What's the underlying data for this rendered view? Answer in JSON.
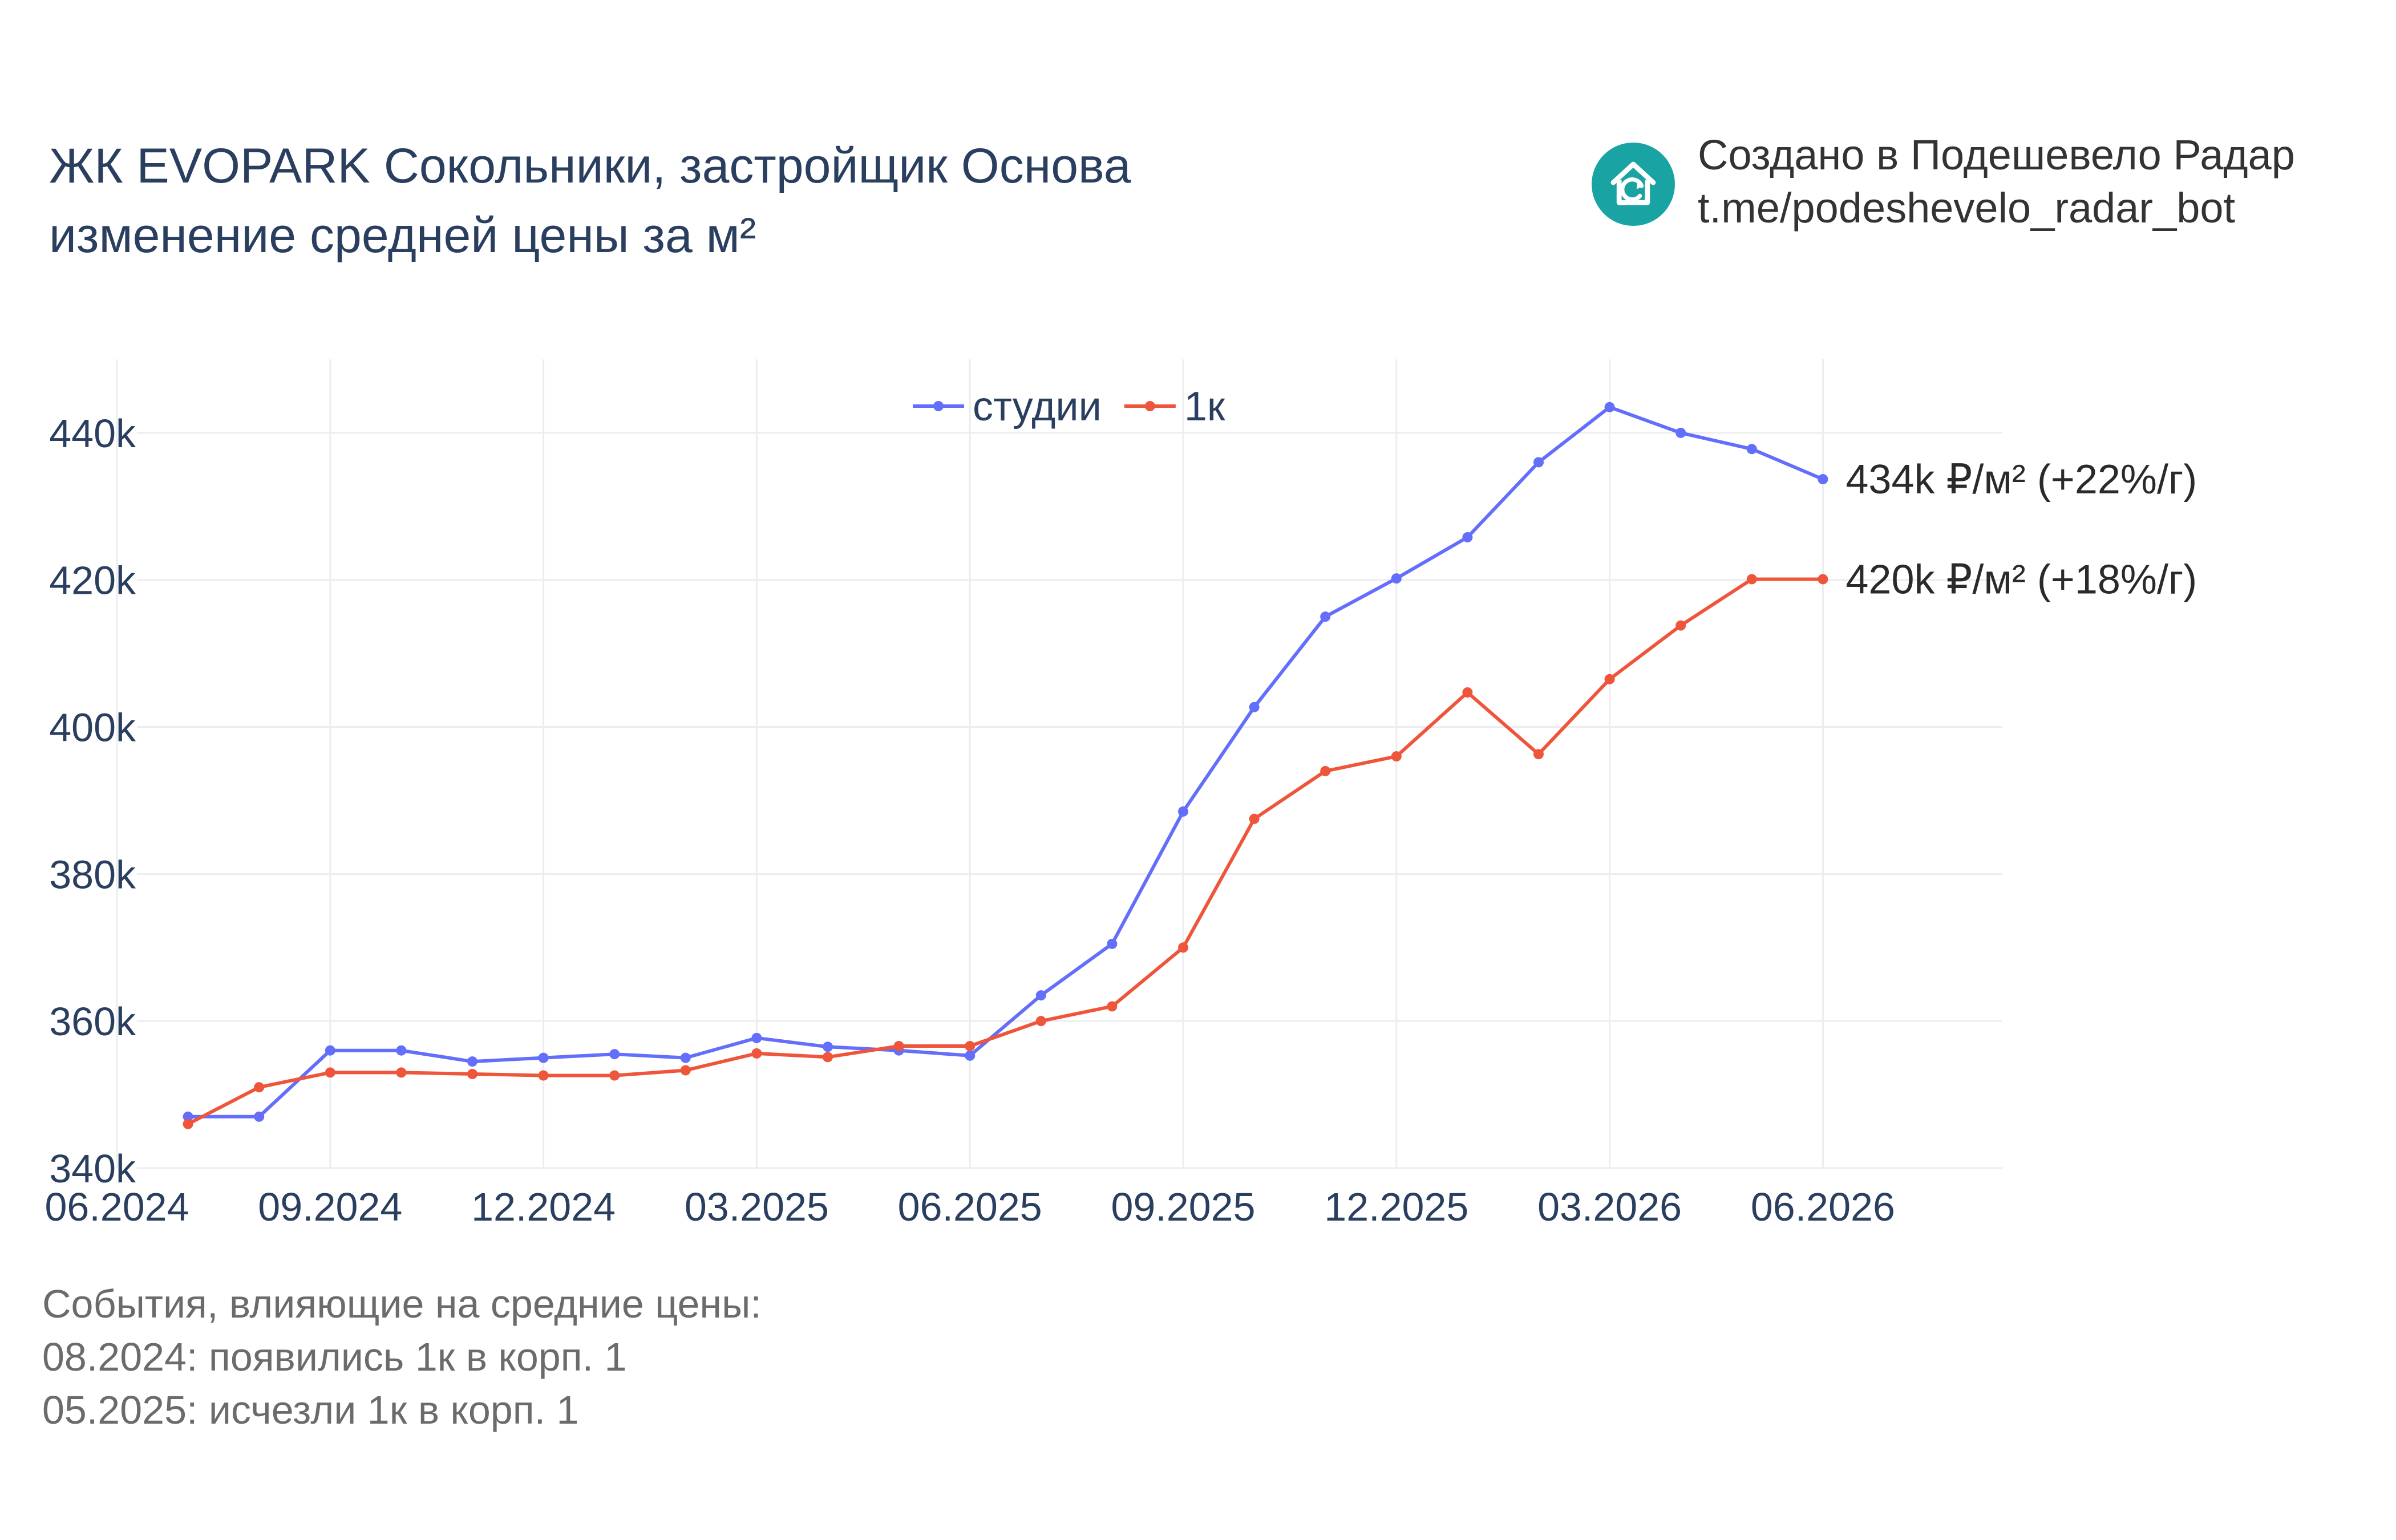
{
  "header": {
    "title_line1": "ЖК EVOPARK Сокольники, застройщик Основа",
    "title_line2": "изменение средней цены за м²"
  },
  "credit": {
    "line1": "Создано в Подешевело Радар",
    "line2": "t.me/podeshevelo_radar_bot",
    "logo_icon": "house-refresh-icon",
    "logo_color": "#1aa3a3"
  },
  "events": {
    "heading": "События, влияющие на средние цены:",
    "items": [
      "08.2024: появились 1к в корп. 1",
      "05.2025: исчезли 1к в корп. 1"
    ]
  },
  "chart_data": {
    "type": "line",
    "x": [
      "07.2024",
      "08.2024",
      "09.2024",
      "10.2024",
      "11.2024",
      "12.2024",
      "01.2025",
      "02.2025",
      "03.2025",
      "04.2025",
      "05.2025",
      "06.2025",
      "07.2025",
      "08.2025",
      "09.2025",
      "10.2025",
      "11.2025",
      "12.2025",
      "01.2026",
      "02.2026",
      "03.2026",
      "04.2026",
      "05.2026",
      "06.2026"
    ],
    "x_ticks": [
      "06.2024",
      "09.2024",
      "12.2024",
      "03.2025",
      "06.2025",
      "09.2025",
      "12.2025",
      "03.2026",
      "06.2026"
    ],
    "y_ticks": [
      "340k",
      "360k",
      "380k",
      "400k",
      "420k",
      "440k"
    ],
    "ylim": [
      340000,
      450000
    ],
    "grid": true,
    "legend": "top-center",
    "series": [
      {
        "name": "студии",
        "color": "#636efa",
        "values": [
          347000,
          347000,
          356000,
          356000,
          354500,
          355000,
          355500,
          355000,
          357700,
          356500,
          356000,
          355300,
          363500,
          370500,
          388500,
          402700,
          415000,
          420200,
          425800,
          436000,
          443500,
          440000,
          437800,
          433700
        ],
        "end_label": "434k ₽/м² (+22%/г)"
      },
      {
        "name": "1к",
        "color": "#ef553b",
        "values": [
          346000,
          351000,
          353000,
          353000,
          352800,
          352600,
          352600,
          353300,
          355600,
          355100,
          356600,
          356600,
          360000,
          362000,
          370000,
          387500,
          394000,
          396000,
          404700,
          396300,
          406500,
          413800,
          420100,
          420100
        ],
        "end_label": "420k ₽/м² (+18%/г)"
      }
    ]
  }
}
